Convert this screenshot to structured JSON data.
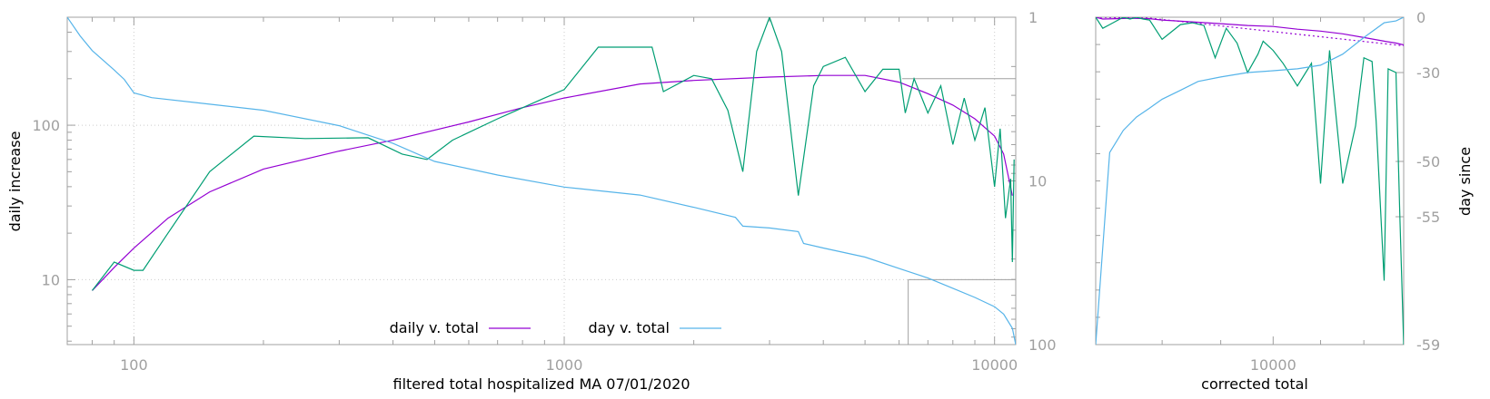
{
  "chart_data": [
    {
      "type": "line",
      "title": "",
      "xlabel": "filtered total hospitalized MA 07/01/2020",
      "ylabel": "daily increase",
      "y2label": "",
      "x_scale": "log",
      "y_scale": "log",
      "y2_scale": "log-reversed",
      "xlim": [
        70,
        11200
      ],
      "ylim": [
        3.8,
        500
      ],
      "y2lim": [
        1,
        100
      ],
      "x_ticks": [
        "100",
        "1000",
        "10000"
      ],
      "y_ticks": [
        "10",
        "100"
      ],
      "y2_ticks": [
        "1",
        "10",
        "100"
      ],
      "grid": true,
      "legend_position": "bottom-center",
      "legend": [
        {
          "label": "daily v. total",
          "color": "#9400d3"
        },
        {
          "label": "day v. total",
          "color": "#56b4e9"
        }
      ],
      "series": [
        {
          "name": "daily v. total",
          "axis": "y",
          "color": "#9400d3",
          "x": [
            80,
            90,
            100,
            120,
            150,
            200,
            300,
            400,
            600,
            800,
            1000,
            1500,
            2000,
            3000,
            4000,
            5000,
            6000,
            7000,
            8000,
            9000,
            10000,
            10500,
            11000
          ],
          "y": [
            8.5,
            12,
            16,
            25,
            37,
            52,
            68,
            80,
            105,
            130,
            150,
            185,
            195,
            205,
            210,
            210,
            190,
            160,
            135,
            110,
            85,
            65,
            35
          ]
        },
        {
          "name": "",
          "axis": "y",
          "color": "#009e73",
          "x": [
            80,
            90,
            100,
            105,
            120,
            150,
            190,
            250,
            350,
            420,
            480,
            550,
            700,
            900,
            1000,
            1200,
            1600,
            1700,
            2000,
            2200,
            2400,
            2600,
            2800,
            3000,
            3200,
            3500,
            3800,
            4000,
            4500,
            5000,
            5500,
            6000,
            6200,
            6500,
            7000,
            7500,
            8000,
            8500,
            9000,
            9500,
            10000,
            10300,
            10600,
            10900,
            11000,
            11100
          ],
          "y": [
            8.5,
            13,
            11.5,
            11.5,
            20,
            50,
            85,
            82,
            83,
            65,
            60,
            80,
            110,
            150,
            170,
            320,
            320,
            165,
            210,
            200,
            125,
            50,
            300,
            500,
            300,
            35,
            180,
            240,
            275,
            165,
            230,
            230,
            120,
            200,
            120,
            180,
            75,
            150,
            80,
            130,
            40,
            95,
            25,
            45,
            13,
            60
          ]
        },
        {
          "name": "day v. total",
          "axis": "y2",
          "color": "#56b4e9",
          "x": [
            70,
            75,
            80,
            90,
            95,
            100,
            110,
            150,
            200,
            300,
            400,
            500,
            700,
            1000,
            1500,
            2000,
            2500,
            2600,
            3000,
            3500,
            3600,
            4000,
            5000,
            6000,
            7000,
            8000,
            9000,
            10000,
            10500,
            11000,
            11200
          ],
          "y": [
            1,
            1.3,
            1.6,
            2.1,
            2.4,
            2.9,
            3.1,
            3.4,
            3.7,
            4.6,
            5.9,
            7.6,
            9.2,
            10.9,
            12.2,
            14.5,
            16.7,
            18.9,
            19.4,
            20.4,
            24.1,
            25.7,
            29.2,
            34.3,
            39.2,
            45.3,
            51.5,
            58.7,
            65.1,
            79.5,
            100
          ]
        }
      ]
    },
    {
      "type": "line",
      "title": "",
      "xlabel": "corrected total",
      "ylabel": "day since",
      "y_position": "right",
      "x_scale": "log",
      "xlim": [
        7000,
        13000
      ],
      "ylim": [
        -59,
        0
      ],
      "x_ticks": [
        "10000"
      ],
      "y_ticks": [
        "0",
        "-30",
        "-50",
        "-55",
        "-59"
      ],
      "y_tick_values": [
        0,
        -30,
        -50,
        -55,
        -59
      ],
      "series": [
        {
          "name": "",
          "color": "#9400d3",
          "x": [
            7000,
            7100,
            7300,
            7500,
            7800,
            8000,
            8500,
            9000,
            9500,
            10000,
            10500,
            11000,
            11500,
            12000,
            12500,
            12800,
            13000
          ],
          "y": [
            0,
            -1.0,
            -0.8,
            -0.6,
            -0.8,
            -1.5,
            -2.5,
            -3.5,
            -4.5,
            -5.0,
            -6.5,
            -7.5,
            -9.0,
            -11.0,
            -13.0,
            -14.0,
            -15.0
          ]
        },
        {
          "name": "",
          "color": "#9400d3",
          "dashed": true,
          "x": [
            7000,
            7800,
            13000
          ],
          "y": [
            0,
            -0.5,
            -15.5
          ]
        },
        {
          "name": "",
          "color": "#009e73",
          "x": [
            7000,
            7100,
            7200,
            7400,
            7500,
            7600,
            7700,
            7800,
            8000,
            8300,
            8500,
            8700,
            8900,
            9100,
            9300,
            9500,
            9700,
            9800,
            10000,
            10200,
            10500,
            10800,
            11000,
            11200,
            11500,
            11800,
            12000,
            12200,
            12300,
            12500,
            12600,
            12800,
            12900,
            13000
          ],
          "y": [
            0,
            -6.0,
            -4.0,
            0,
            -1.0,
            0,
            -1.0,
            -1.5,
            -12.0,
            -4.0,
            -3.0,
            -4.5,
            -22.0,
            -6.0,
            -14.0,
            -30.0,
            -20.0,
            -13.0,
            -18.0,
            -25.0,
            -33.0,
            -25.0,
            -52.0,
            -18.0,
            -52.0,
            -42.0,
            -22.0,
            -24.0,
            -41.0,
            -57.0,
            -28.0,
            -30.0,
            -55.0,
            -59.0
          ]
        },
        {
          "name": "",
          "color": "#56b4e9",
          "x": [
            7000,
            7200,
            7400,
            7600,
            7800,
            8000,
            8300,
            8600,
            9000,
            9500,
            10000,
            10500,
            11000,
            11500,
            12000,
            12500,
            12800,
            13000
          ],
          "y": [
            -59,
            -48,
            -43,
            -40,
            -38,
            -36,
            -34,
            -32,
            -31,
            -30,
            -29,
            -28,
            -26,
            -20,
            -11,
            -3,
            -2,
            0
          ]
        }
      ]
    }
  ]
}
